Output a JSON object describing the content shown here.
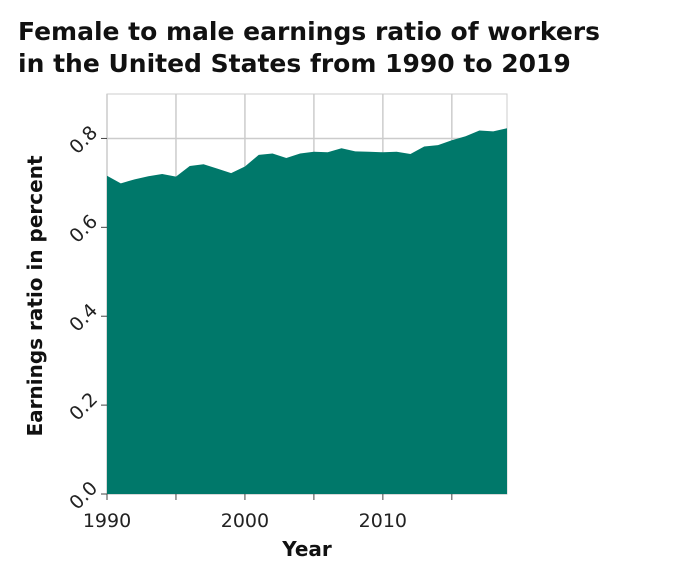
{
  "title_lines": [
    "Female to male earnings ratio of workers",
    "in the United States from 1990 to 2019"
  ],
  "chart_data": {
    "type": "area",
    "title": "Female to male earnings ratio of workers in the United States from 1990 to 2019",
    "xlabel": "Year",
    "ylabel": "Earnings ratio in percent",
    "xlim": [
      1990,
      2019
    ],
    "ylim": [
      0,
      0.9
    ],
    "x_ticks": [
      1990,
      1995,
      2000,
      2005,
      2010,
      2015
    ],
    "x_tick_labels": [
      "1990",
      "",
      "2000",
      "",
      "2010",
      ""
    ],
    "y_ticks": [
      0.0,
      0.2,
      0.4,
      0.6,
      0.8
    ],
    "y_tick_labels": [
      "0.0",
      "0.2",
      "0.4",
      "0.6",
      "0.8"
    ],
    "grid": true,
    "fill_color": "#00786a",
    "series": [
      {
        "x": [
          1990,
          1991,
          1992,
          1993,
          1994,
          1995,
          1996,
          1997,
          1998,
          1999,
          2000,
          2001,
          2002,
          2003,
          2004,
          2005,
          2006,
          2007,
          2008,
          2009,
          2010,
          2011,
          2012,
          2013,
          2014,
          2015,
          2016,
          2017,
          2018,
          2019
        ],
        "values": [
          0.716,
          0.699,
          0.708,
          0.715,
          0.72,
          0.714,
          0.738,
          0.742,
          0.732,
          0.722,
          0.737,
          0.763,
          0.766,
          0.756,
          0.766,
          0.77,
          0.769,
          0.778,
          0.771,
          0.77,
          0.769,
          0.77,
          0.765,
          0.782,
          0.785,
          0.796,
          0.805,
          0.818,
          0.816,
          0.823
        ]
      }
    ]
  }
}
